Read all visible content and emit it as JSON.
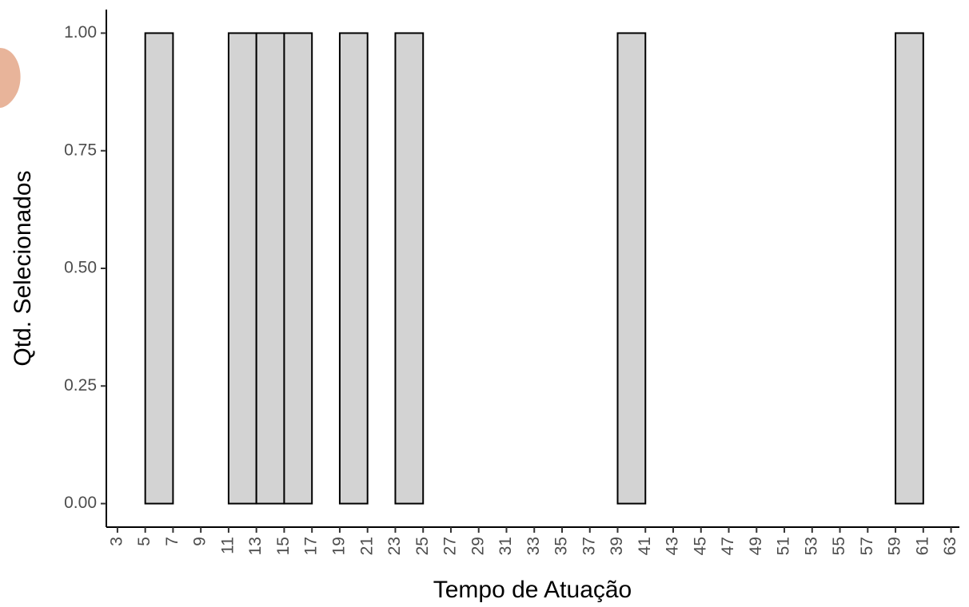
{
  "chart_data": {
    "type": "histogram",
    "xlabel": "Tempo de Atuação",
    "ylabel": "Qtd. Selecionados",
    "bins": [
      5,
      7,
      9,
      11,
      13,
      15,
      17,
      19,
      21,
      23,
      25,
      27,
      29,
      31,
      33,
      35,
      37,
      39,
      41,
      43,
      45,
      47,
      49,
      51,
      53,
      55,
      57,
      59,
      61
    ],
    "values": [
      1,
      0,
      0,
      1,
      1,
      1,
      0,
      1,
      0,
      1,
      0,
      0,
      0,
      0,
      0,
      0,
      0,
      1,
      0,
      0,
      0,
      0,
      0,
      0,
      0,
      0,
      0,
      1
    ],
    "color": "#d3d3d3",
    "xlim": [
      2.2,
      63.6
    ],
    "xticks": [
      3,
      5,
      7,
      9,
      11,
      13,
      15,
      17,
      19,
      21,
      23,
      25,
      27,
      29,
      31,
      33,
      35,
      37,
      39,
      41,
      43,
      45,
      47,
      49,
      51,
      53,
      55,
      57,
      59,
      61,
      63
    ],
    "ylim": [
      -0.05,
      1.05
    ],
    "yticks": [
      {
        "value": 0,
        "label": "0.00"
      },
      {
        "value": 0.25,
        "label": "0.25"
      },
      {
        "value": 0.5,
        "label": "0.50"
      },
      {
        "value": 0.75,
        "label": "0.75"
      },
      {
        "value": 1,
        "label": "1.00"
      }
    ]
  }
}
